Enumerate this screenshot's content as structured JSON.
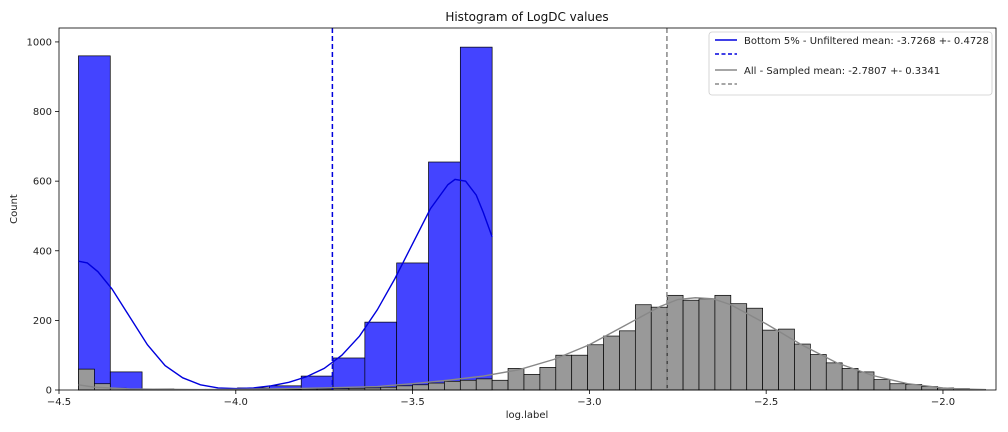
{
  "chart_data": {
    "type": "histogram",
    "title": "Histogram of LogDC values",
    "xlabel": "log.label",
    "ylabel": "Count",
    "xlim": [
      -4.5,
      -1.85
    ],
    "ylim": [
      0,
      1040
    ],
    "xticks": [
      -4.5,
      -4.0,
      -3.5,
      -3.0,
      -2.5,
      -2.0
    ],
    "xtick_labels": [
      "−4.5",
      "−4.0",
      "−3.5",
      "−3.0",
      "−2.5",
      "−2.0"
    ],
    "yticks": [
      0,
      200,
      400,
      600,
      800,
      1000
    ],
    "ytick_labels": [
      "0",
      "200",
      "400",
      "600",
      "800",
      "1000"
    ],
    "grid": false,
    "legend_position": "top-right",
    "legend": [
      "Bottom 5% - Unfiltered mean: -3.7268 +- 0.4728",
      "",
      "All - Sampled mean: -2.7807 +- 0.3341",
      ""
    ],
    "colors": {
      "bottom_bar": "#4444ff",
      "bottom_line": "#0000dd",
      "all_bar": "#999999",
      "all_line": "#888888",
      "edge": "#000000"
    },
    "series": [
      {
        "name": "Bottom 5% - Unfiltered mean: -3.7268 +- 0.4728",
        "bin_edges": [
          -4.445,
          -4.355,
          -4.265,
          -4.175,
          -4.085,
          -3.995,
          -3.905,
          -3.815,
          -3.725,
          -3.635,
          -3.545,
          -3.455,
          -3.365,
          -3.275
        ],
        "counts": [
          960,
          52,
          3,
          2,
          2,
          6,
          12,
          40,
          92,
          195,
          365,
          655,
          985
        ],
        "mean": -3.7268,
        "kde": [
          [
            -4.445,
            370
          ],
          [
            -4.42,
            365
          ],
          [
            -4.39,
            340
          ],
          [
            -4.35,
            290
          ],
          [
            -4.3,
            210
          ],
          [
            -4.25,
            130
          ],
          [
            -4.2,
            70
          ],
          [
            -4.15,
            35
          ],
          [
            -4.1,
            15
          ],
          [
            -4.05,
            6
          ],
          [
            -4.0,
            4
          ],
          [
            -3.95,
            6
          ],
          [
            -3.9,
            12
          ],
          [
            -3.85,
            22
          ],
          [
            -3.8,
            38
          ],
          [
            -3.75,
            62
          ],
          [
            -3.7,
            100
          ],
          [
            -3.65,
            155
          ],
          [
            -3.6,
            230
          ],
          [
            -3.55,
            320
          ],
          [
            -3.5,
            420
          ],
          [
            -3.45,
            520
          ],
          [
            -3.4,
            590
          ],
          [
            -3.38,
            605
          ],
          [
            -3.35,
            600
          ],
          [
            -3.32,
            560
          ],
          [
            -3.3,
            510
          ],
          [
            -3.275,
            440
          ]
        ]
      },
      {
        "name": "All - Sampled mean: -2.7807 +- 0.3341",
        "bin_edges": [
          -4.445,
          -4.4,
          -4.355,
          -4.31,
          -4.265,
          -4.22,
          -4.175,
          -4.13,
          -4.085,
          -4.04,
          -3.995,
          -3.95,
          -3.905,
          -3.86,
          -3.815,
          -3.77,
          -3.725,
          -3.68,
          -3.635,
          -3.59,
          -3.545,
          -3.5,
          -3.455,
          -3.41,
          -3.365,
          -3.32,
          -3.275,
          -3.23,
          -3.185,
          -3.14,
          -3.095,
          -3.05,
          -3.005,
          -2.96,
          -2.915,
          -2.87,
          -2.825,
          -2.78,
          -2.735,
          -2.69,
          -2.645,
          -2.6,
          -2.555,
          -2.51,
          -2.465,
          -2.42,
          -2.375,
          -2.33,
          -2.285,
          -2.24,
          -2.195,
          -2.15,
          -2.105,
          -2.06,
          -2.015,
          -1.97,
          -1.925,
          -1.88
        ],
        "counts": [
          60,
          18,
          5,
          2,
          1,
          1,
          1,
          1,
          1,
          1,
          1,
          1,
          2,
          2,
          3,
          3,
          4,
          5,
          6,
          8,
          12,
          15,
          20,
          25,
          28,
          32,
          28,
          62,
          45,
          65,
          100,
          100,
          130,
          155,
          170,
          245,
          238,
          272,
          258,
          262,
          272,
          248,
          235,
          172,
          175,
          132,
          102,
          78,
          62,
          52,
          30,
          18,
          16,
          10,
          6,
          4,
          2
        ],
        "mean": -2.7807,
        "kde": [
          [
            -4.445,
            15
          ],
          [
            -4.4,
            8
          ],
          [
            -4.3,
            3
          ],
          [
            -4.1,
            1
          ],
          [
            -3.9,
            3
          ],
          [
            -3.75,
            6
          ],
          [
            -3.6,
            10
          ],
          [
            -3.5,
            18
          ],
          [
            -3.4,
            28
          ],
          [
            -3.3,
            40
          ],
          [
            -3.2,
            58
          ],
          [
            -3.1,
            88
          ],
          [
            -3.0,
            130
          ],
          [
            -2.9,
            185
          ],
          [
            -2.8,
            240
          ],
          [
            -2.75,
            260
          ],
          [
            -2.7,
            265
          ],
          [
            -2.65,
            262
          ],
          [
            -2.6,
            245
          ],
          [
            -2.5,
            190
          ],
          [
            -2.4,
            130
          ],
          [
            -2.3,
            78
          ],
          [
            -2.2,
            42
          ],
          [
            -2.1,
            18
          ],
          [
            -2.0,
            6
          ],
          [
            -1.95,
            3
          ],
          [
            -1.88,
            1
          ]
        ]
      }
    ]
  }
}
